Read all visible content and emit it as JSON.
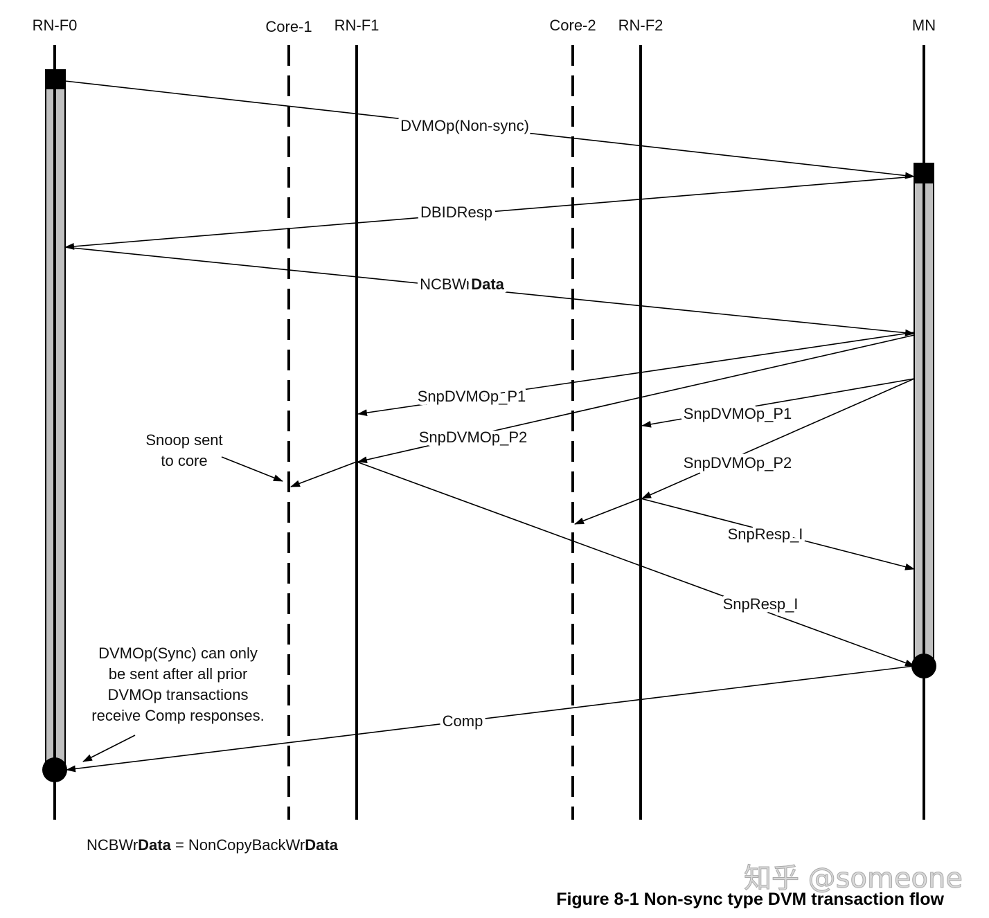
{
  "lifelines": [
    "RN-F0",
    "Core-1",
    "RN-F1",
    "Core-2",
    "RN-F2",
    "MN"
  ],
  "messages": {
    "dvmop_nonsync": "DVMOp(Non-sync)",
    "dbidresp": "DBIDResp",
    "ncbwrdata_prefix": "NCBWr",
    "ncbwrdata_bold": "Data",
    "snp_p1_f1": "SnpDVMOp_P1",
    "snp_p2_f1": "SnpDVMOp_P2",
    "snp_p1_f2": "SnpDVMOp_P1",
    "snp_p2_f2": "SnpDVMOp_P2",
    "snpresp_f2": "SnpResp_I",
    "snpresp_f1": "SnpResp_I",
    "comp": "Comp"
  },
  "notes": {
    "snoop": [
      "Snoop sent",
      "to core"
    ],
    "sync": [
      "DVMOp(Sync) can only",
      "be sent after all prior",
      "DVMOp transactions",
      "receive Comp responses."
    ]
  },
  "footnote": {
    "a": "NCBWr",
    "b": "Data",
    "c": " = NonCopyBackWr",
    "d": "Data"
  },
  "caption": "Figure 8-1 Non-sync type DVM transaction flow",
  "watermark": "知乎 @someone"
}
